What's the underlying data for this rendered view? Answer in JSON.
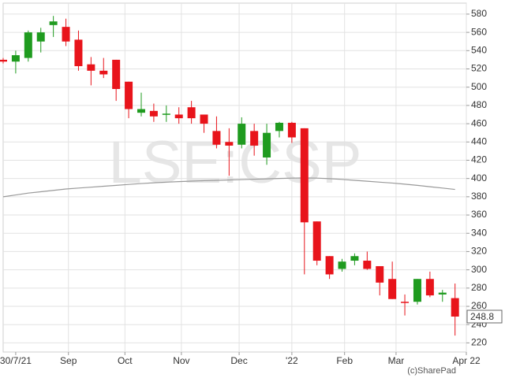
{
  "chart_data": {
    "type": "candlestick",
    "watermark": "LSE:CSP",
    "credit": "(c)SharePad",
    "last_price": 248.8,
    "up_color": "#1f9b1f",
    "down_color": "#e8141b",
    "ma_color": "#999999",
    "grid": true,
    "xlim": [
      0,
      36.9
    ],
    "xticks": [
      {
        "value": 1,
        "label": "30/7/21"
      },
      {
        "value": 5.2,
        "label": "Sep"
      },
      {
        "value": 9.7,
        "label": "Oct"
      },
      {
        "value": 14.2,
        "label": "Nov"
      },
      {
        "value": 18.8,
        "label": "Dec"
      },
      {
        "value": 23,
        "label": "'22"
      },
      {
        "value": 27.2,
        "label": "Feb"
      },
      {
        "value": 31.3,
        "label": "Mar"
      },
      {
        "value": 36.9,
        "label": "Apr 22"
      }
    ],
    "ylim": [
      210,
      592
    ],
    "yticks": [
      220,
      240,
      260,
      280,
      300,
      320,
      340,
      360,
      380,
      400,
      420,
      440,
      460,
      480,
      500,
      520,
      540,
      560,
      580
    ],
    "open": [
      530,
      528,
      532,
      550,
      568,
      566,
      552,
      525,
      518,
      530,
      506,
      472,
      474,
      470,
      470,
      478,
      470,
      452,
      440,
      437,
      452,
      423,
      452,
      461,
      455,
      353,
      315,
      301,
      310,
      310,
      304,
      290,
      265,
      265,
      290,
      273,
      269
    ],
    "high": [
      532,
      540,
      562,
      565,
      578,
      575,
      562,
      533,
      532,
      530,
      506,
      494,
      482,
      480,
      478,
      485,
      470,
      468,
      455,
      467,
      460,
      460,
      462,
      462,
      455,
      353,
      315,
      312,
      318,
      320,
      304,
      309,
      273,
      290,
      298,
      278,
      285
    ],
    "low": [
      526,
      515,
      528,
      538,
      555,
      545,
      518,
      502,
      510,
      485,
      466,
      468,
      462,
      462,
      460,
      460,
      450,
      433,
      403,
      433,
      425,
      415,
      445,
      439,
      295,
      305,
      290,
      298,
      305,
      300,
      272,
      268,
      250,
      262,
      270,
      265,
      228
    ],
    "close": [
      528,
      535,
      560,
      560,
      572,
      550,
      523,
      518,
      514,
      498,
      476,
      476,
      468,
      471,
      466,
      466,
      460,
      437,
      436,
      460,
      436,
      450,
      461,
      445,
      352,
      310,
      295,
      309,
      315,
      301,
      286,
      268,
      264,
      290,
      272,
      275,
      248.8
    ],
    "moving_average": [
      380,
      382,
      384,
      385.5,
      387,
      388.5,
      389.5,
      390.5,
      391.5,
      392.5,
      393.5,
      394.5,
      395.3,
      396,
      396.6,
      397.1,
      397.6,
      398,
      398.4,
      398.8,
      399.2,
      399.6,
      400,
      400.4,
      400.6,
      400.4,
      399.8,
      399,
      398,
      397,
      396,
      395,
      393.8,
      392.5,
      391,
      389.5,
      388
    ]
  }
}
